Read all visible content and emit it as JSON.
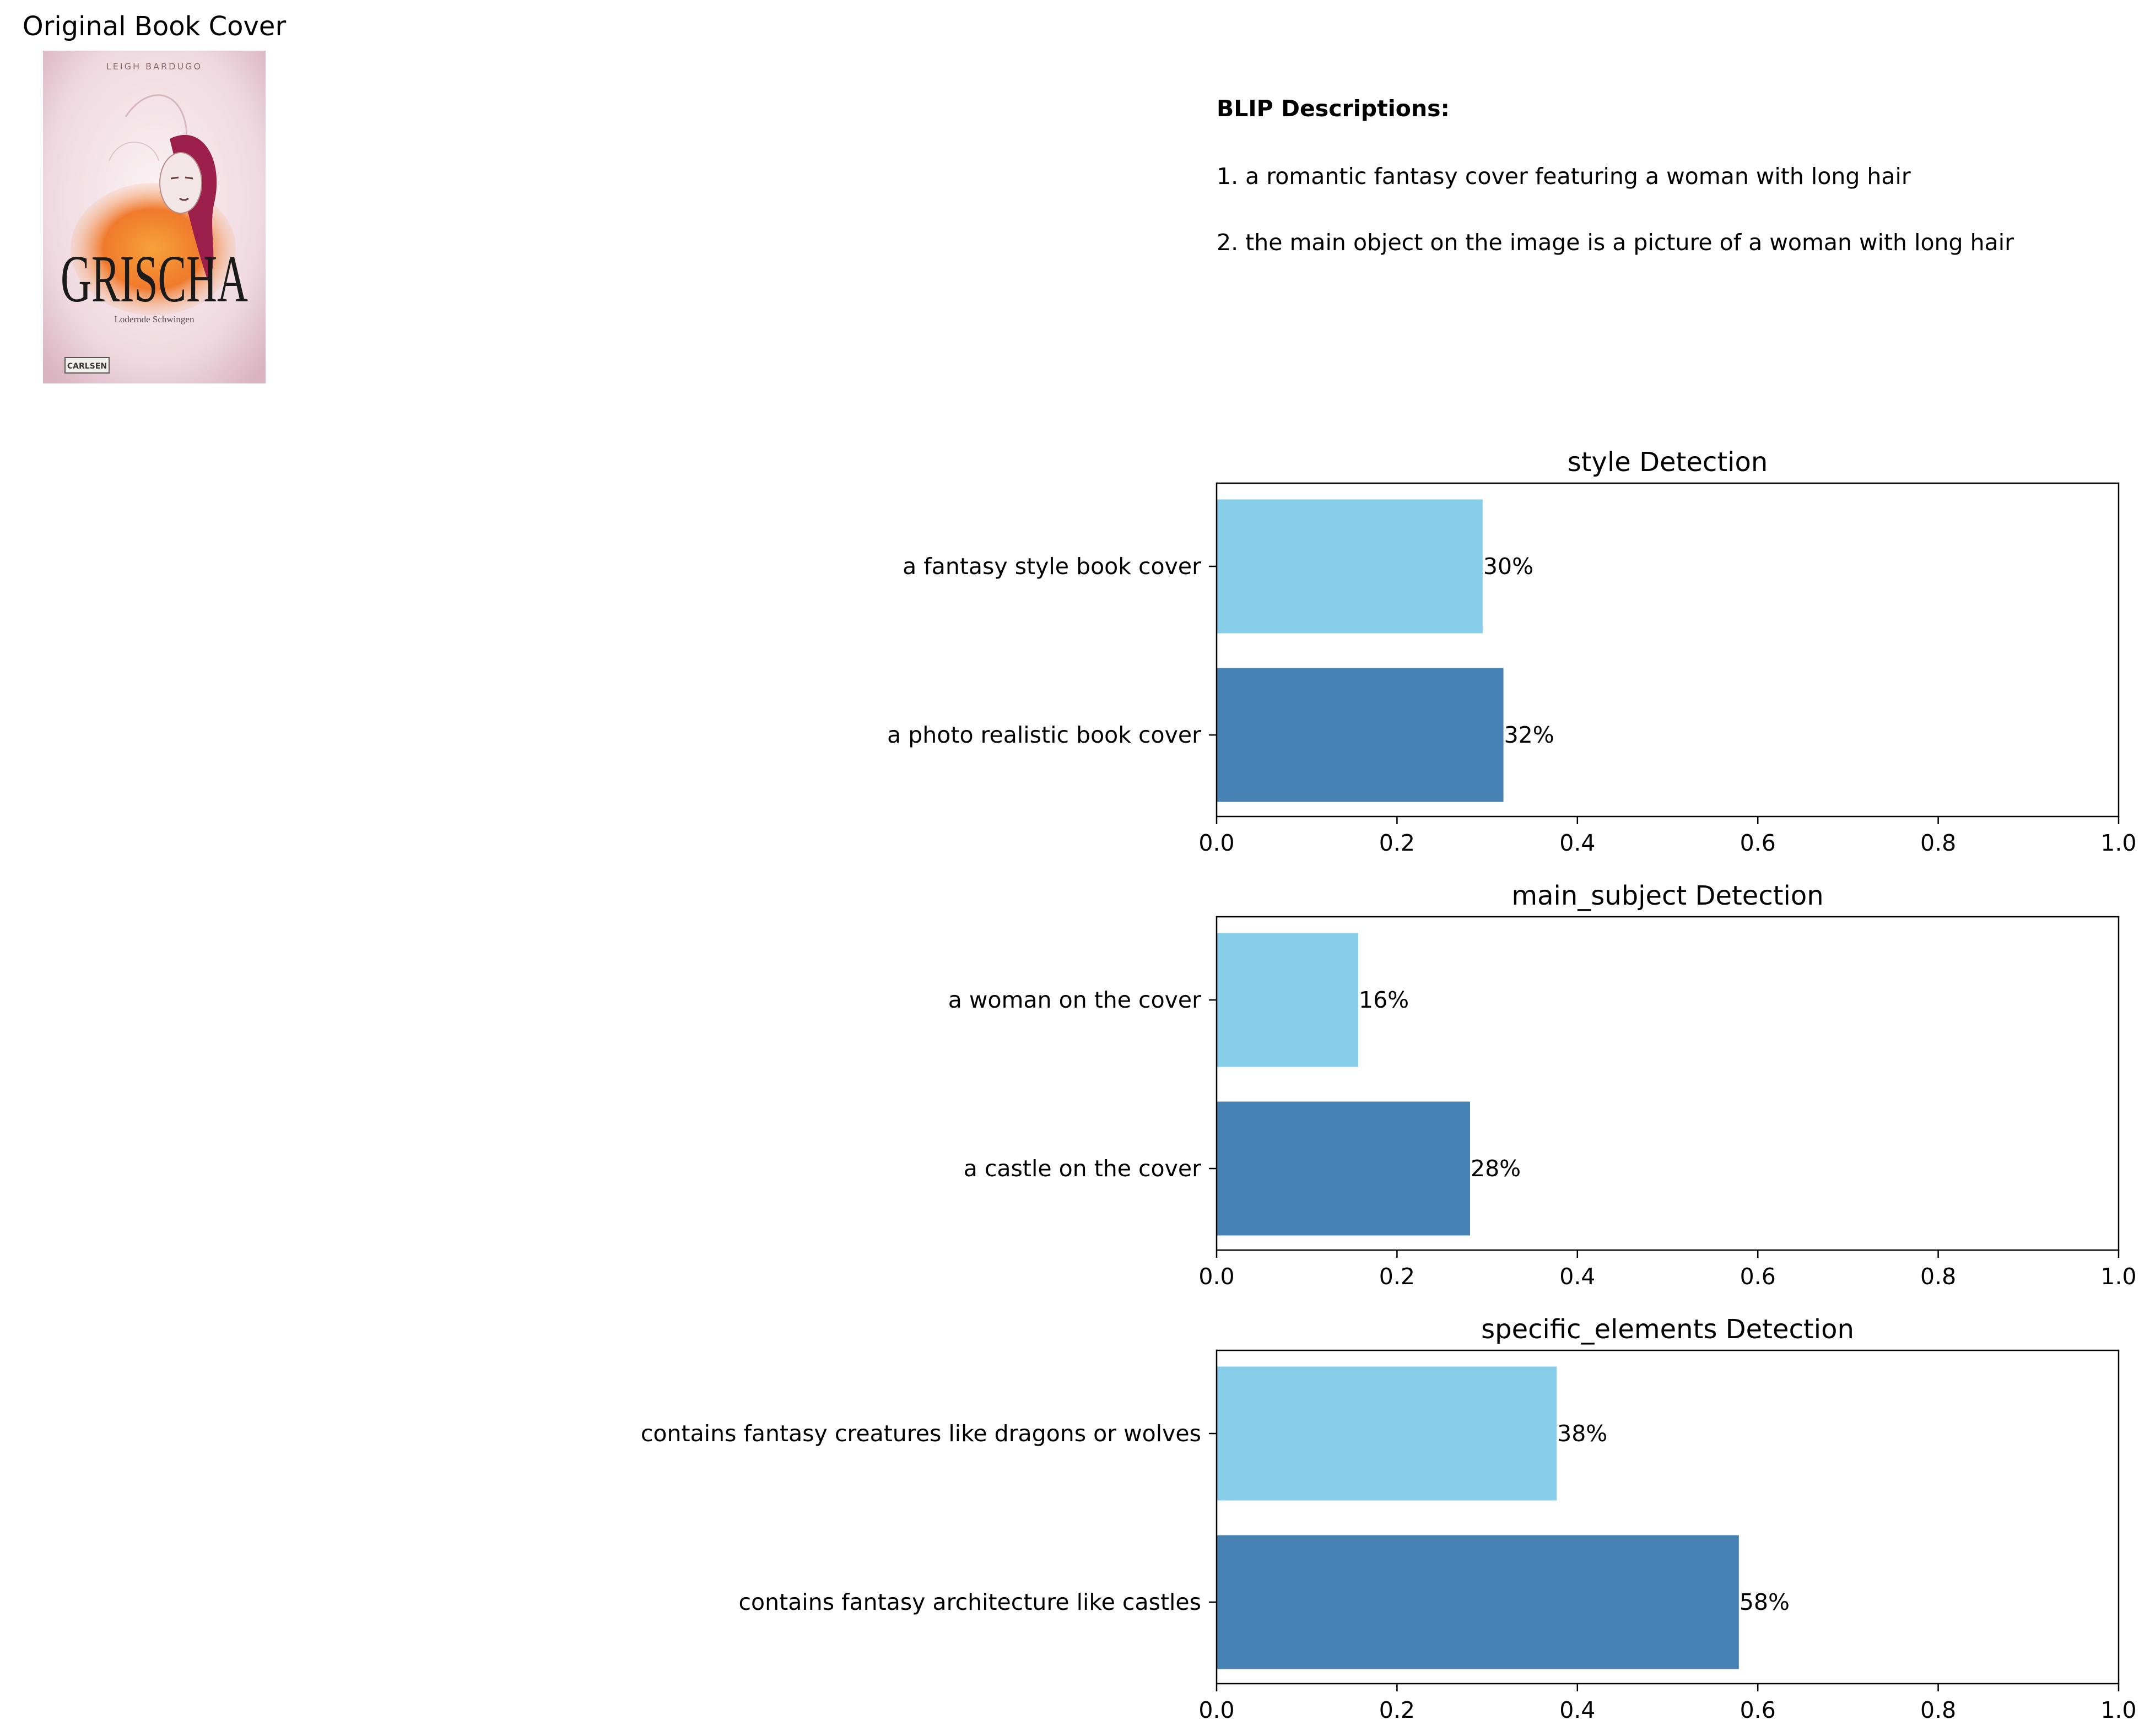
{
  "cover_panel": {
    "title": "Original Book Cover",
    "cover_author": "LEIGH BARDUGO",
    "cover_book_title": "GRISCHA",
    "cover_subtitle": "Lodernde Schwingen",
    "cover_publisher": "CARLSEN"
  },
  "blip": {
    "heading": "BLIP Descriptions:",
    "descriptions": [
      "1. a romantic fantasy cover featuring a woman with long hair",
      "2. the main object on the image is a picture of a woman with long hair"
    ]
  },
  "colors": {
    "bar_light": "#87CEEB",
    "bar_dark": "#4682B4"
  },
  "chart_data": [
    {
      "type": "bar",
      "orientation": "horizontal",
      "title": "style Detection",
      "categories": [
        "a fantasy style book cover",
        "a photo realistic book cover"
      ],
      "values": [
        0.295,
        0.318
      ],
      "value_labels": [
        "30%",
        "32%"
      ],
      "xlim": [
        0,
        1
      ],
      "xticks": [
        "0.0",
        "0.2",
        "0.4",
        "0.6",
        "0.8",
        "1.0"
      ],
      "grid": false
    },
    {
      "type": "bar",
      "orientation": "horizontal",
      "title": "main_subject Detection",
      "categories": [
        "a woman on the cover",
        "a castle on the cover"
      ],
      "values": [
        0.157,
        0.281
      ],
      "value_labels": [
        "16%",
        "28%"
      ],
      "xlim": [
        0,
        1
      ],
      "xticks": [
        "0.0",
        "0.2",
        "0.4",
        "0.6",
        "0.8",
        "1.0"
      ],
      "grid": false
    },
    {
      "type": "bar",
      "orientation": "horizontal",
      "title": "specific_elements Detection",
      "categories": [
        "contains fantasy creatures like dragons or wolves",
        "contains fantasy architecture like castles"
      ],
      "values": [
        0.377,
        0.579
      ],
      "value_labels": [
        "38%",
        "58%"
      ],
      "xlim": [
        0,
        1
      ],
      "xticks": [
        "0.0",
        "0.2",
        "0.4",
        "0.6",
        "0.8",
        "1.0"
      ],
      "grid": false
    }
  ]
}
